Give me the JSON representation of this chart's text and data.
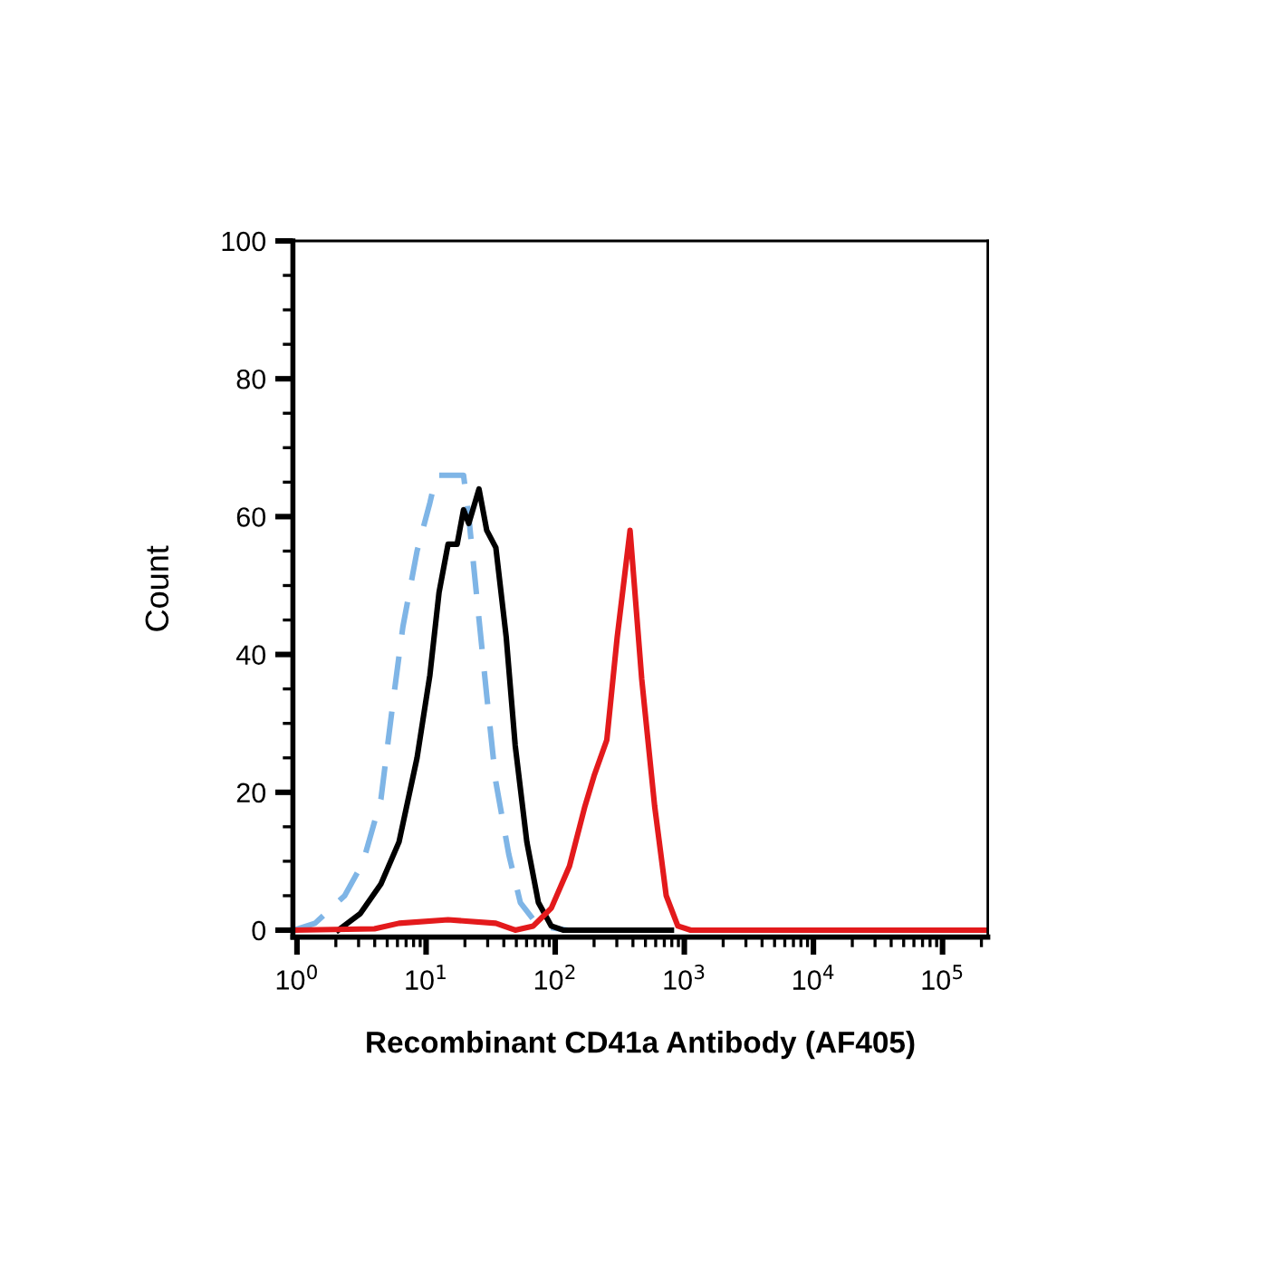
{
  "chart_data": {
    "type": "line",
    "xlabel": "Recombinant CD41a Antibody (AF405)",
    "ylabel": "Count",
    "log": "x",
    "xlim": [
      0.93,
      224000
    ],
    "xticks": [
      {
        "value": 1,
        "label": "10$^{0}$"
      },
      {
        "value": 10,
        "label": "10$^{1}$"
      },
      {
        "value": 100,
        "label": "10$^{2}$"
      },
      {
        "value": 1000,
        "label": "10$^{3}$"
      },
      {
        "value": 10000,
        "label": "10$^{4}$"
      },
      {
        "value": 100000,
        "label": "10$^{5}$"
      }
    ],
    "ylim": [
      -1,
      100
    ],
    "yticks": [
      0,
      20,
      40,
      60,
      80,
      100
    ],
    "grid": false,
    "marker": "none",
    "series": [
      {
        "color": "#7fb5e6",
        "line_style": "dashed",
        "x": [
          0.95,
          1.38,
          2.34,
          3.24,
          4.47,
          5.62,
          6.61,
          8.51,
          10.7,
          12.0,
          14.8,
          19.5,
          21.4,
          25.1,
          29.5,
          34.7,
          43.7,
          53.7,
          74.1,
          126
        ],
        "values": [
          0,
          1,
          5,
          9.8,
          19,
          34,
          44,
          55,
          62,
          66,
          66,
          66,
          60,
          47,
          34,
          21.5,
          11,
          4,
          0.6,
          0
        ]
      },
      {
        "color": "#000000",
        "line_style": "solid",
        "x": [
          2.09,
          3.09,
          4.47,
          6.17,
          8.51,
          10.7,
          12.6,
          14.8,
          17.4,
          19.5,
          21.4,
          25.7,
          29.5,
          34.7,
          41.7,
          49,
          60.3,
          74.1,
          93.3,
          115,
          794
        ],
        "values": [
          0,
          2.4,
          6.7,
          12.8,
          25,
          37,
          49,
          56,
          56,
          61,
          59,
          64,
          58,
          55.5,
          42.6,
          26.8,
          12.8,
          4,
          0.6,
          0,
          0
        ]
      },
      {
        "color": "#e31a1c",
        "line_style": "solid",
        "x": [
          0.95,
          3.98,
          6.17,
          14.8,
          34.7,
          49,
          67.6,
          93.3,
          129,
          170,
          200,
          251,
          302,
          380,
          468,
          589,
          724,
          891,
          1122,
          224000
        ],
        "values": [
          0,
          0.2,
          1,
          1.5,
          1,
          0,
          0.6,
          3.2,
          9.3,
          18,
          22.4,
          27.6,
          42.5,
          58,
          36.4,
          18,
          5,
          0.6,
          0,
          0
        ]
      }
    ]
  }
}
